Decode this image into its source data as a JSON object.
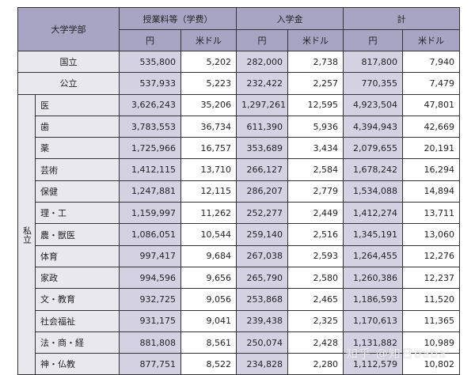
{
  "table": {
    "corner_label": "大学学部",
    "column_groups": [
      {
        "label": "授業料等（学费）"
      },
      {
        "label": "入学金"
      },
      {
        "label": "計"
      }
    ],
    "sub_headers": [
      "円",
      "米ドル",
      "円",
      "米ドル",
      "円",
      "米ドル"
    ],
    "public_rows": [
      {
        "name": "国立",
        "tuition_yen": "535,800",
        "tuition_usd": "5,202",
        "entrance_yen": "282,000",
        "entrance_usd": "2,738",
        "total_yen": "817,800",
        "total_usd": "7,940"
      },
      {
        "name": "公立",
        "tuition_yen": "537,933",
        "tuition_usd": "5,223",
        "entrance_yen": "232,422",
        "entrance_usd": "2,257",
        "total_yen": "770,355",
        "total_usd": "7,479"
      }
    ],
    "private_group_label": "私立",
    "private_rows": [
      {
        "name": "医",
        "tuition_yen": "3,626,243",
        "tuition_usd": "35,206",
        "entrance_yen": "1,297,261",
        "entrance_usd": "12,595",
        "total_yen": "4,923,504",
        "total_usd": "47,801"
      },
      {
        "name": "歯",
        "tuition_yen": "3,783,553",
        "tuition_usd": "36,734",
        "entrance_yen": "611,390",
        "entrance_usd": "5,936",
        "total_yen": "4,394,943",
        "total_usd": "42,669"
      },
      {
        "name": "薬",
        "tuition_yen": "1,725,966",
        "tuition_usd": "16,757",
        "entrance_yen": "353,689",
        "entrance_usd": "3,434",
        "total_yen": "2,079,655",
        "total_usd": "20,191"
      },
      {
        "name": "芸術",
        "tuition_yen": "1,412,115",
        "tuition_usd": "13,710",
        "entrance_yen": "266,127",
        "entrance_usd": "2,584",
        "total_yen": "1,678,242",
        "total_usd": "16,294"
      },
      {
        "name": "保健",
        "tuition_yen": "1,247,881",
        "tuition_usd": "12,115",
        "entrance_yen": "286,207",
        "entrance_usd": "2,779",
        "total_yen": "1,534,088",
        "total_usd": "14,894"
      },
      {
        "name": "理・工",
        "tuition_yen": "1,159,997",
        "tuition_usd": "11,262",
        "entrance_yen": "252,277",
        "entrance_usd": "2,449",
        "total_yen": "1,412,274",
        "total_usd": "13,711"
      },
      {
        "name": "農・獣医",
        "tuition_yen": "1,086,051",
        "tuition_usd": "10,544",
        "entrance_yen": "259,140",
        "entrance_usd": "2,516",
        "total_yen": "1,345,191",
        "total_usd": "13,060"
      },
      {
        "name": "体育",
        "tuition_yen": "997,417",
        "tuition_usd": "9,684",
        "entrance_yen": "267,038",
        "entrance_usd": "2,593",
        "total_yen": "1,264,455",
        "total_usd": "12,276"
      },
      {
        "name": "家政",
        "tuition_yen": "994,596",
        "tuition_usd": "9,656",
        "entrance_yen": "265,790",
        "entrance_usd": "2,580",
        "total_yen": "1,260,386",
        "total_usd": "12,237"
      },
      {
        "name": "文・教育",
        "tuition_yen": "932,725",
        "tuition_usd": "9,056",
        "entrance_yen": "253,868",
        "entrance_usd": "2,465",
        "total_yen": "1,186,593",
        "total_usd": "11,520"
      },
      {
        "name": "社会福祉",
        "tuition_yen": "931,175",
        "tuition_usd": "9,041",
        "entrance_yen": "239,438",
        "entrance_usd": "2,325",
        "total_yen": "1,170,613",
        "total_usd": "11,365"
      },
      {
        "name": "法・商・経",
        "tuition_yen": "881,808",
        "tuition_usd": "8,561",
        "entrance_yen": "250,074",
        "entrance_usd": "2,428",
        "total_yen": "1,131,882",
        "total_usd": "10,989"
      },
      {
        "name": "神・仏教",
        "tuition_yen": "877,751",
        "tuition_usd": "8,522",
        "entrance_yen": "234,828",
        "entrance_usd": "2,280",
        "total_yen": "1,112,579",
        "total_usd": "10,802"
      }
    ]
  },
  "watermark": "知乎 @知日baba",
  "colors": {
    "header_bg": "#a8a5c4",
    "yen_col_bg": "#d4d2e2",
    "label_bg": "#e9e8ef",
    "usd_col_bg": "#ffffff",
    "border": "#333333"
  }
}
